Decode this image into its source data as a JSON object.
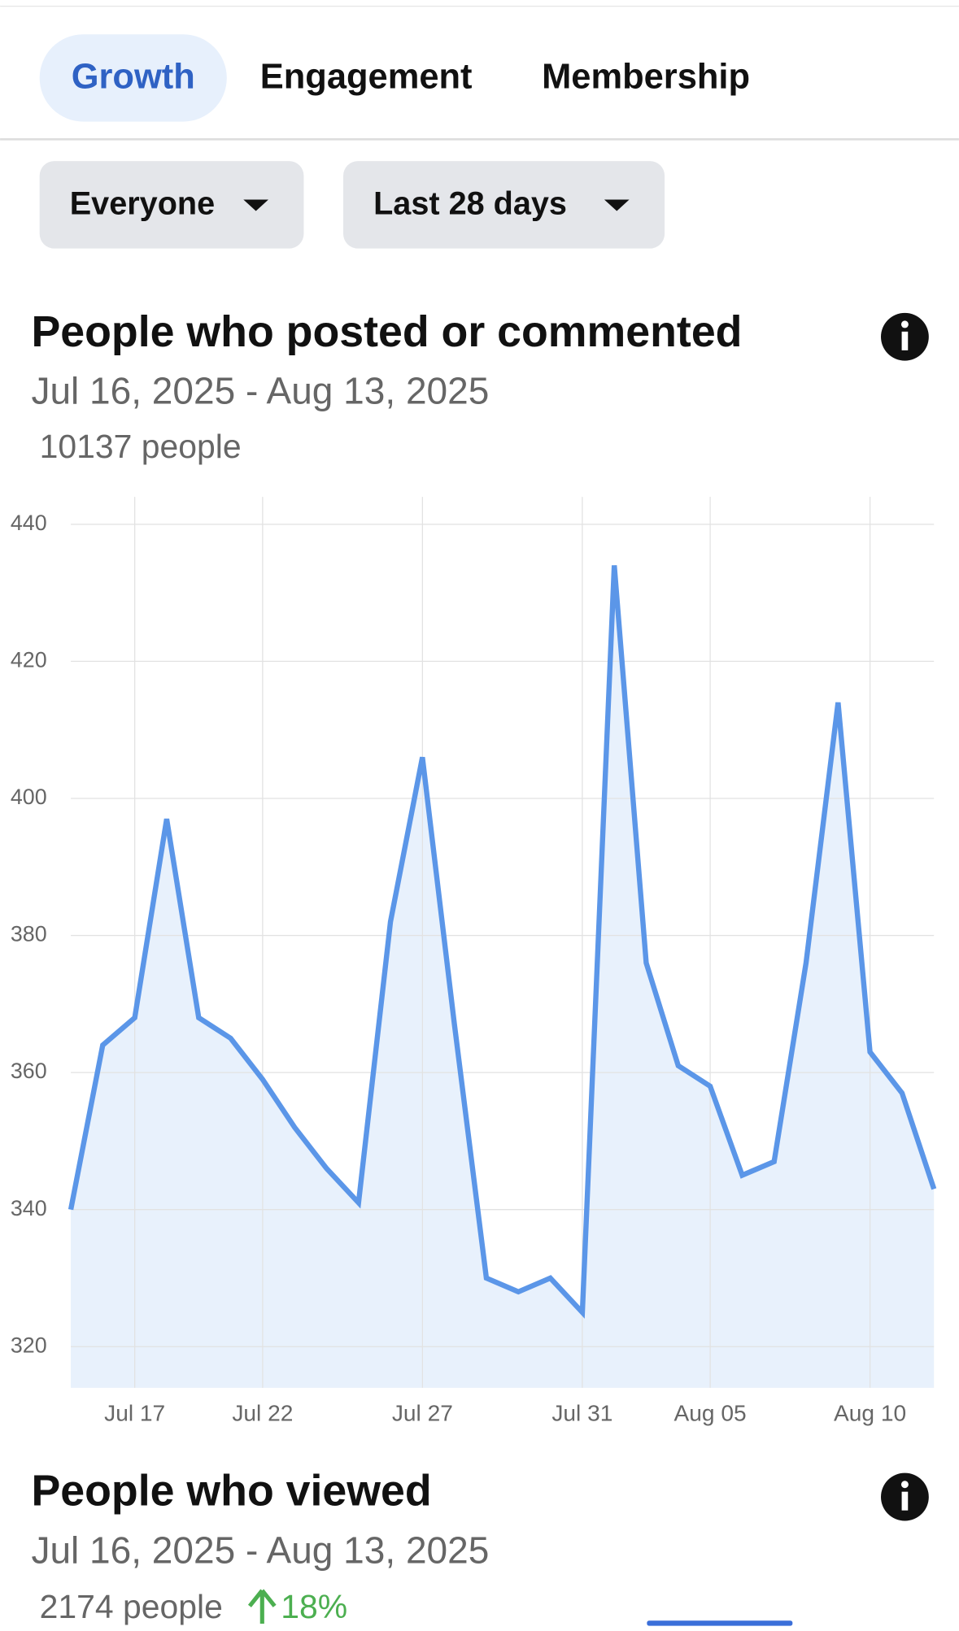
{
  "tabs": [
    "Growth",
    "Engagement",
    "Membership"
  ],
  "filters": [
    "Everyone",
    "Last 28 days"
  ],
  "cards": [
    {
      "title": "People who posted or commented",
      "date_range": "Jul 16, 2025 - Aug 13, 2025",
      "total": "10137 people"
    },
    {
      "title": "People who viewed",
      "date_range": "Jul 16, 2025 - Aug 13, 2025",
      "total": "2174 people",
      "change": "18%"
    }
  ],
  "chart_data": {
    "type": "line",
    "categories": [
      null,
      null,
      "Jul 17",
      null,
      null,
      null,
      "Jul 22",
      null,
      null,
      null,
      null,
      "Jul 27",
      null,
      null,
      null,
      null,
      "Jul 31",
      null,
      null,
      null,
      "Aug 05",
      null,
      null,
      null,
      null,
      "Aug 10",
      null,
      null
    ],
    "series": [
      {
        "name": "People",
        "color": "#5b96e8",
        "values": [
          340,
          364,
          368,
          397,
          368,
          365,
          359,
          352,
          346,
          341,
          382,
          406,
          367,
          330,
          328,
          330,
          325,
          434,
          376,
          361,
          358,
          345,
          347,
          376,
          414,
          363,
          357,
          343
        ]
      }
    ],
    "ylim": [
      314,
      444
    ],
    "yticks": [
      320,
      340,
      360,
      380,
      400,
      420,
      440
    ],
    "grid": true,
    "fill": "#e8f1fc"
  }
}
